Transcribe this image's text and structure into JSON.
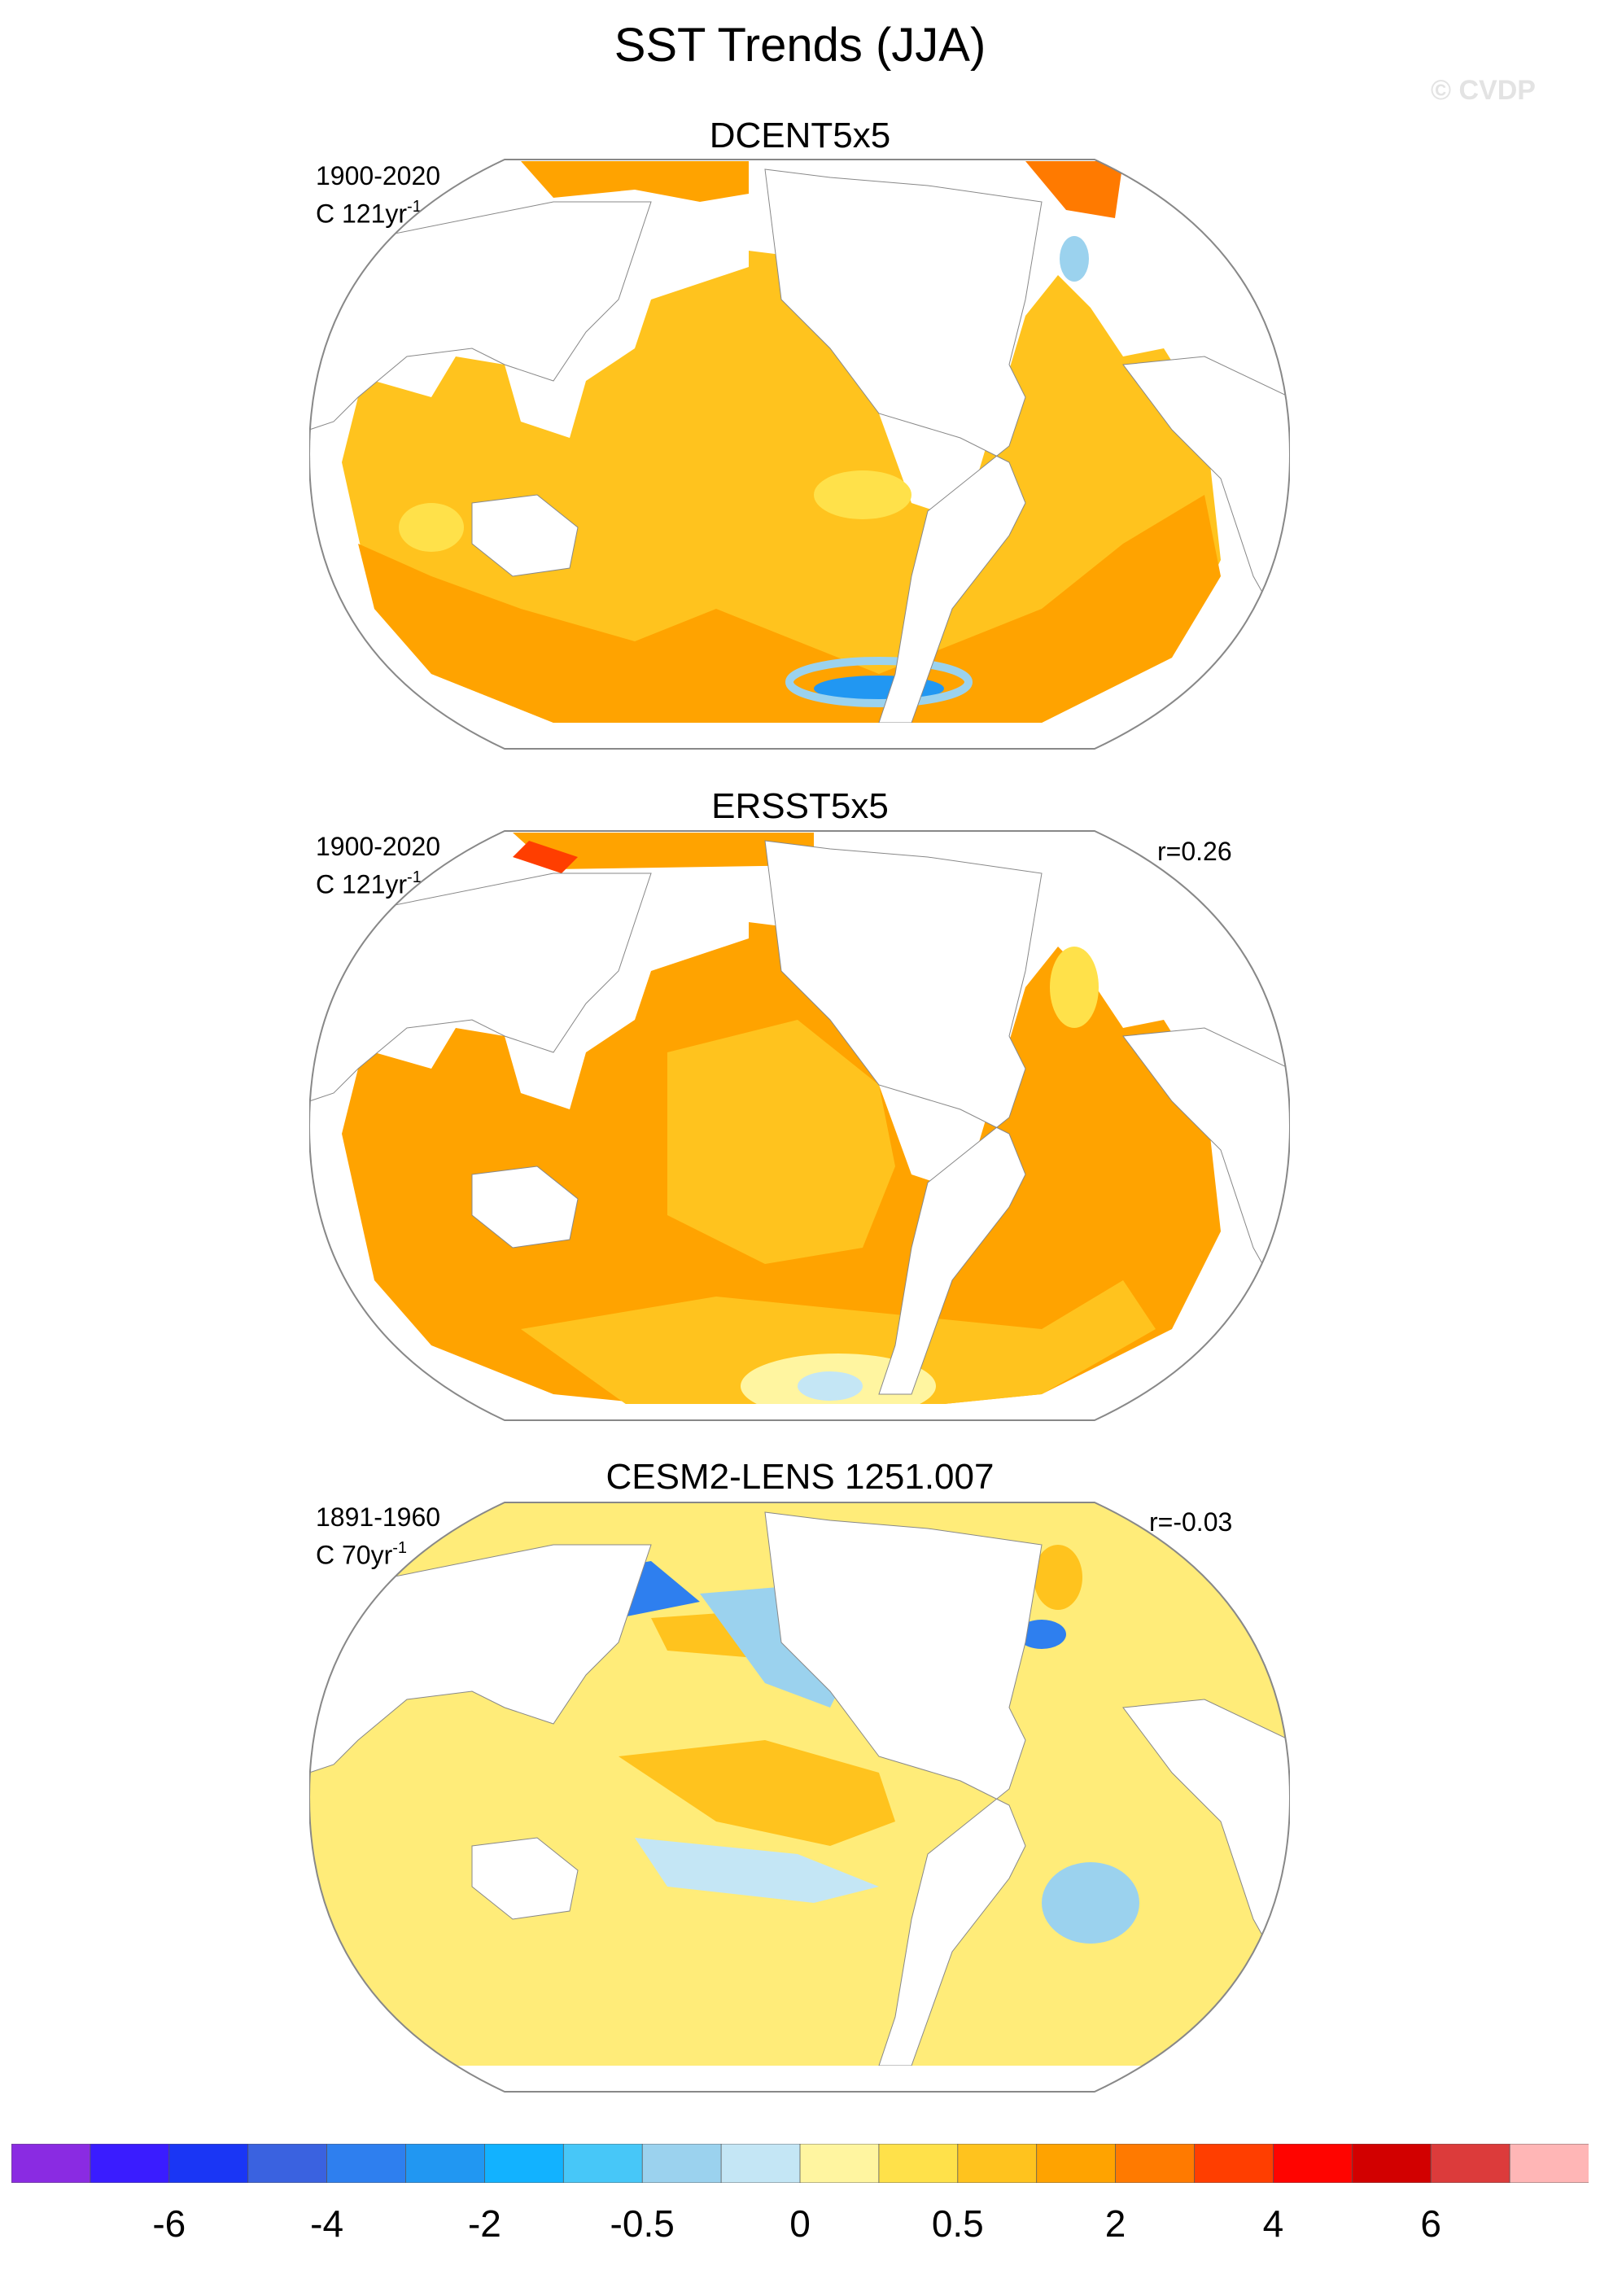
{
  "title": "SST Trends (JJA)",
  "watermark": "© CVDP",
  "panels": [
    {
      "title": "DCENT5x5",
      "period": "1900-2020",
      "units_prefix": "C 121yr",
      "units_sup": "-1",
      "correlation": ""
    },
    {
      "title": "ERSST5x5",
      "period": "1900-2020",
      "units_prefix": "C 121yr",
      "units_sup": "-1",
      "correlation": "r=0.26"
    },
    {
      "title": "CESM2-LENS 1251.007",
      "period": "1891-1960",
      "units_prefix": "C 70yr",
      "units_sup": "-1",
      "correlation": "r=-0.03"
    }
  ],
  "colorbar": {
    "colors": [
      "#8a2be2",
      "#3a1cff",
      "#1a36f5",
      "#3a62e0",
      "#2e7fef",
      "#2197f2",
      "#12b2ff",
      "#47c7f8",
      "#9bd2ee",
      "#c4e6f5",
      "#fff5a0",
      "#ffe14a",
      "#ffc31e",
      "#ffa300",
      "#ff7a00",
      "#ff3e00",
      "#ff0400",
      "#d20000",
      "#dc3b3b",
      "#ffb6b6"
    ],
    "labels": [
      "-6",
      "-4",
      "-2",
      "-0.5",
      "0",
      "0.5",
      "2",
      "4",
      "6"
    ]
  }
}
